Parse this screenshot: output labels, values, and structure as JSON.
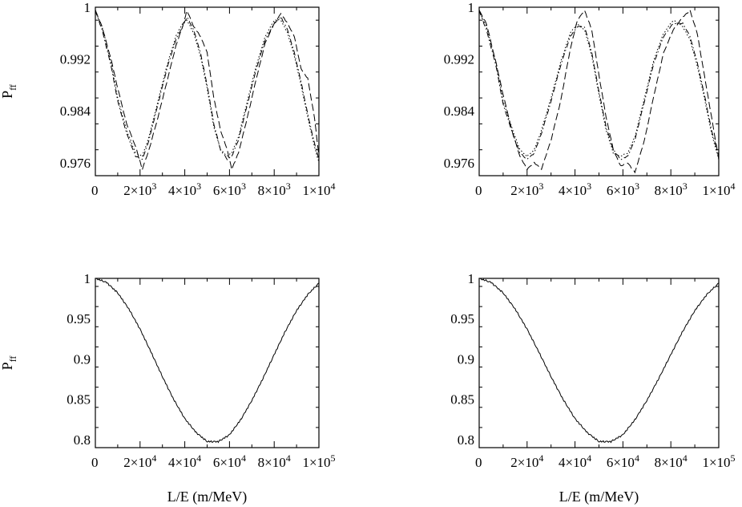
{
  "chart_data": [
    {
      "type": "line",
      "ylabel": "P",
      "ylabel_sub": "ff",
      "xlabel": "",
      "xlim": [
        0,
        10000
      ],
      "ylim": [
        0.974,
        1.0
      ],
      "yticks": [
        {
          "v": 1.0,
          "label": "1"
        },
        {
          "v": 0.992,
          "label": "0.992"
        },
        {
          "v": 0.984,
          "label": "0.984"
        },
        {
          "v": 0.976,
          "label": "0.976"
        }
      ],
      "xticks": [
        {
          "v": 0,
          "label": "0",
          "exp": ""
        },
        {
          "v": 2000,
          "label": "2×10",
          "exp": "3"
        },
        {
          "v": 4000,
          "label": "4×10",
          "exp": "3"
        },
        {
          "v": 6000,
          "label": "6×10",
          "exp": "3"
        },
        {
          "v": 8000,
          "label": "8×10",
          "exp": "3"
        },
        {
          "v": 10000,
          "label": "1×10",
          "exp": "4"
        }
      ],
      "series": [
        {
          "style": "dashed",
          "x": [
            0,
            300,
            700,
            1000,
            1400,
            1800,
            2100,
            2400,
            2800,
            3200,
            3600,
            3900,
            4100,
            4400,
            4700,
            5000,
            5300,
            5600,
            5900,
            6100,
            6400,
            6800,
            7200,
            7600,
            8000,
            8300,
            8600,
            8900,
            9200,
            9500,
            9800,
            10000
          ],
          "y": [
            0.9995,
            0.997,
            0.992,
            0.9875,
            0.982,
            0.9785,
            0.975,
            0.978,
            0.983,
            0.9885,
            0.994,
            0.997,
            0.9995,
            0.997,
            0.9955,
            0.993,
            0.986,
            0.981,
            0.978,
            0.975,
            0.9775,
            0.983,
            0.989,
            0.9945,
            0.9975,
            0.999,
            0.9975,
            0.9955,
            0.9905,
            0.989,
            0.983,
            0.977
          ]
        },
        {
          "style": "dashdot",
          "x": [
            0,
            300,
            700,
            1000,
            1400,
            1800,
            2100,
            2400,
            2800,
            3200,
            3600,
            3900,
            4100,
            4400,
            4700,
            5000,
            5300,
            5600,
            5900,
            6100,
            6400,
            6800,
            7200,
            7600,
            8000,
            8300,
            8600,
            8900,
            9200,
            9500,
            9800,
            10000
          ],
          "y": [
            0.9995,
            0.9965,
            0.991,
            0.9855,
            0.9805,
            0.977,
            0.9765,
            0.9795,
            0.985,
            0.9905,
            0.995,
            0.997,
            0.9985,
            0.9965,
            0.993,
            0.988,
            0.982,
            0.978,
            0.9765,
            0.977,
            0.9795,
            0.985,
            0.9905,
            0.995,
            0.9975,
            0.9985,
            0.9965,
            0.993,
            0.9885,
            0.9835,
            0.979,
            0.9765
          ]
        },
        {
          "style": "dotted",
          "x": [
            0,
            300,
            700,
            1000,
            1400,
            1800,
            2100,
            2400,
            2800,
            3200,
            3600,
            3900,
            4100,
            4400,
            4700,
            5000,
            5300,
            5600,
            5900,
            6100,
            6400,
            6800,
            7200,
            7600,
            8000,
            8300,
            8600,
            8900,
            9200,
            9500,
            9800,
            10000
          ],
          "y": [
            0.9995,
            0.997,
            0.9915,
            0.986,
            0.981,
            0.9775,
            0.977,
            0.98,
            0.9855,
            0.991,
            0.9955,
            0.9975,
            0.998,
            0.996,
            0.9925,
            0.9875,
            0.9815,
            0.978,
            0.977,
            0.9775,
            0.98,
            0.9855,
            0.991,
            0.9955,
            0.998,
            0.998,
            0.996,
            0.9925,
            0.988,
            0.983,
            0.9785,
            0.976
          ]
        }
      ]
    },
    {
      "type": "line",
      "ylabel": "",
      "ylabel_sub": "",
      "xlabel": "",
      "xlim": [
        0,
        10000
      ],
      "ylim": [
        0.974,
        1.0
      ],
      "yticks": [
        {
          "v": 1.0,
          "label": "1"
        },
        {
          "v": 0.992,
          "label": "0.992"
        },
        {
          "v": 0.984,
          "label": "0.984"
        },
        {
          "v": 0.976,
          "label": "0.976"
        }
      ],
      "xticks": [
        {
          "v": 0,
          "label": "0",
          "exp": ""
        },
        {
          "v": 2000,
          "label": "2×10",
          "exp": "3"
        },
        {
          "v": 4000,
          "label": "4×10",
          "exp": "3"
        },
        {
          "v": 6000,
          "label": "6×10",
          "exp": "3"
        },
        {
          "v": 8000,
          "label": "8×10",
          "exp": "3"
        },
        {
          "v": 10000,
          "label": "1×10",
          "exp": "4"
        }
      ],
      "series": [
        {
          "style": "dashed",
          "x": [
            0,
            300,
            700,
            1000,
            1400,
            1700,
            2000,
            2300,
            2600,
            3000,
            3400,
            3800,
            4100,
            4400,
            4700,
            5000,
            5300,
            5600,
            5900,
            6200,
            6500,
            6900,
            7300,
            7700,
            8100,
            8500,
            8800,
            9100,
            9400,
            9700,
            10000
          ],
          "y": [
            0.9995,
            0.9975,
            0.9915,
            0.9865,
            0.9805,
            0.977,
            0.975,
            0.976,
            0.975,
            0.9795,
            0.9855,
            0.9935,
            0.998,
            0.9995,
            0.9965,
            0.9895,
            0.983,
            0.978,
            0.9755,
            0.976,
            0.9745,
            0.9795,
            0.9865,
            0.993,
            0.9965,
            0.9985,
            0.9995,
            0.996,
            0.9895,
            0.983,
            0.9765
          ]
        },
        {
          "style": "dashdot",
          "x": [
            0,
            300,
            700,
            1000,
            1400,
            1700,
            2000,
            2300,
            2600,
            3000,
            3400,
            3800,
            4100,
            4400,
            4700,
            5000,
            5300,
            5600,
            5900,
            6200,
            6500,
            6900,
            7300,
            7700,
            8100,
            8500,
            8800,
            9100,
            9400,
            9700,
            10000
          ],
          "y": [
            0.9995,
            0.9965,
            0.991,
            0.985,
            0.9805,
            0.9775,
            0.9765,
            0.9775,
            0.9805,
            0.9855,
            0.991,
            0.9955,
            0.997,
            0.997,
            0.993,
            0.987,
            0.9815,
            0.978,
            0.9765,
            0.977,
            0.9795,
            0.9855,
            0.9915,
            0.9955,
            0.9975,
            0.9975,
            0.9955,
            0.9915,
            0.9865,
            0.981,
            0.977
          ]
        },
        {
          "style": "dotted",
          "x": [
            0,
            300,
            700,
            1000,
            1400,
            1700,
            2000,
            2300,
            2600,
            3000,
            3400,
            3800,
            4100,
            4400,
            4700,
            5000,
            5300,
            5600,
            5900,
            6200,
            6500,
            6900,
            7300,
            7700,
            8100,
            8500,
            8800,
            9100,
            9400,
            9700,
            10000
          ],
          "y": [
            0.9995,
            0.997,
            0.9915,
            0.9855,
            0.981,
            0.978,
            0.977,
            0.978,
            0.981,
            0.986,
            0.9915,
            0.996,
            0.9975,
            0.9965,
            0.9925,
            0.9865,
            0.981,
            0.9775,
            0.977,
            0.9775,
            0.98,
            0.986,
            0.992,
            0.996,
            0.998,
            0.997,
            0.995,
            0.991,
            0.986,
            0.9805,
            0.9765
          ]
        }
      ]
    },
    {
      "type": "line",
      "ylabel": "P",
      "ylabel_sub": "ff",
      "xlabel": "L/E (m/MeV)",
      "xlim": [
        0,
        100000
      ],
      "ylim": [
        0.79,
        1.0
      ],
      "yticks": [
        {
          "v": 1.0,
          "label": "1"
        },
        {
          "v": 0.95,
          "label": "0.95"
        },
        {
          "v": 0.9,
          "label": "0.9"
        },
        {
          "v": 0.85,
          "label": "0.85"
        },
        {
          "v": 0.8,
          "label": "0.8"
        }
      ],
      "xticks": [
        {
          "v": 0,
          "label": "0",
          "exp": ""
        },
        {
          "v": 20000,
          "label": "2×10",
          "exp": "4"
        },
        {
          "v": 40000,
          "label": "4×10",
          "exp": "4"
        },
        {
          "v": 60000,
          "label": "6×10",
          "exp": "4"
        },
        {
          "v": 80000,
          "label": "8×10",
          "exp": "4"
        },
        {
          "v": 100000,
          "label": "1×10",
          "exp": "5"
        }
      ],
      "series": [
        {
          "style": "solid",
          "x": [
            0,
            5000,
            10000,
            15000,
            20000,
            25000,
            30000,
            35000,
            40000,
            45000,
            50000,
            55000,
            60000,
            65000,
            70000,
            75000,
            80000,
            85000,
            90000,
            95000,
            100000
          ],
          "y": [
            1.0,
            0.995,
            0.982,
            0.962,
            0.937,
            0.908,
            0.878,
            0.85,
            0.826,
            0.809,
            0.7975,
            0.7975,
            0.806,
            0.8245,
            0.8485,
            0.876,
            0.9055,
            0.9345,
            0.96,
            0.98,
            0.994
          ]
        }
      ]
    },
    {
      "type": "line",
      "ylabel": "",
      "ylabel_sub": "",
      "xlabel": "L/E (m/MeV)",
      "xlim": [
        0,
        100000
      ],
      "ylim": [
        0.79,
        1.0
      ],
      "yticks": [
        {
          "v": 1.0,
          "label": "1"
        },
        {
          "v": 0.95,
          "label": "0.95"
        },
        {
          "v": 0.9,
          "label": "0.9"
        },
        {
          "v": 0.85,
          "label": "0.85"
        },
        {
          "v": 0.8,
          "label": "0.8"
        }
      ],
      "xticks": [
        {
          "v": 0,
          "label": "0",
          "exp": ""
        },
        {
          "v": 20000,
          "label": "2×10",
          "exp": "4"
        },
        {
          "v": 40000,
          "label": "4×10",
          "exp": "4"
        },
        {
          "v": 60000,
          "label": "6×10",
          "exp": "4"
        },
        {
          "v": 80000,
          "label": "8×10",
          "exp": "4"
        },
        {
          "v": 100000,
          "label": "1×10",
          "exp": "5"
        }
      ],
      "series": [
        {
          "style": "solid",
          "x": [
            0,
            5000,
            10000,
            15000,
            20000,
            25000,
            30000,
            35000,
            40000,
            45000,
            50000,
            55000,
            60000,
            65000,
            70000,
            75000,
            80000,
            85000,
            90000,
            95000,
            100000
          ],
          "y": [
            1.0,
            0.995,
            0.982,
            0.962,
            0.937,
            0.908,
            0.878,
            0.85,
            0.826,
            0.809,
            0.7975,
            0.7975,
            0.806,
            0.8245,
            0.8485,
            0.876,
            0.9055,
            0.9345,
            0.96,
            0.98,
            0.994
          ]
        }
      ]
    }
  ]
}
